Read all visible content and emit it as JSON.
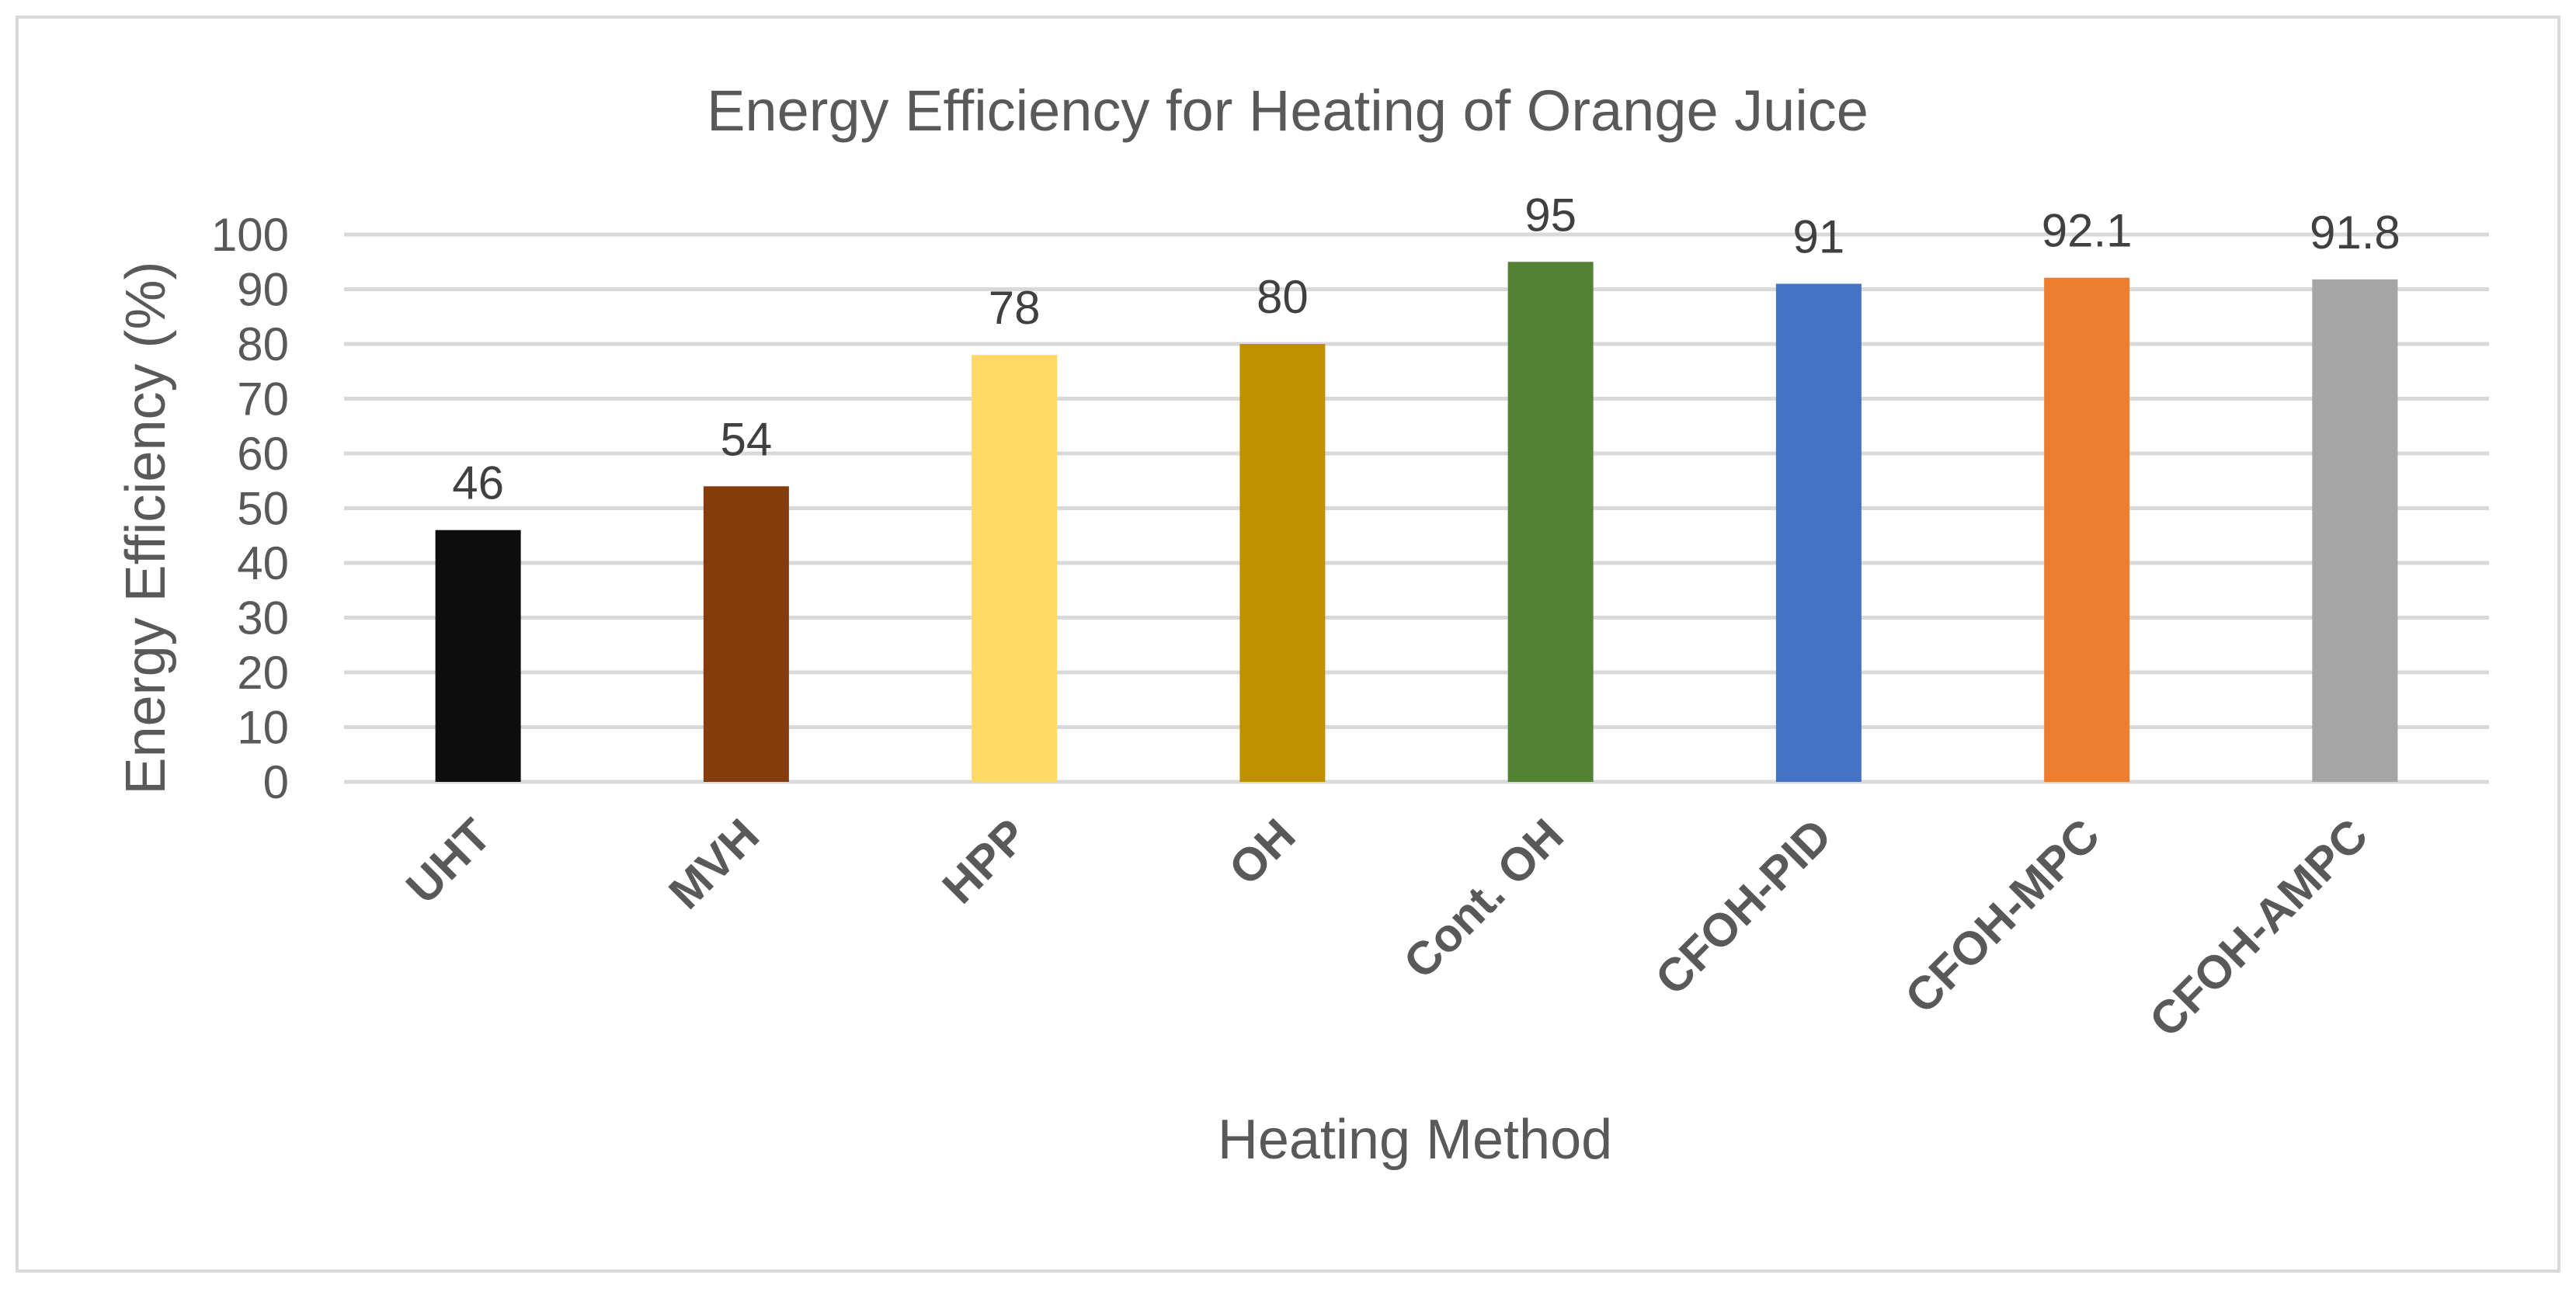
{
  "chart_data": {
    "type": "bar",
    "title": "Energy Efficiency for Heating of Orange Juice",
    "xlabel": "Heating Method",
    "ylabel": "Energy Efficiency (%)",
    "ylim": [
      0,
      100
    ],
    "yticks": [
      "0",
      "10",
      "20",
      "30",
      "40",
      "50",
      "60",
      "70",
      "80",
      "90",
      "100"
    ],
    "grid": true,
    "categories": [
      "UHT",
      "MVH",
      "HPP",
      "OH",
      "Cont. OH",
      "CFOH-PID",
      "CFOH-MPC",
      "CFOH-AMPC"
    ],
    "values": [
      46,
      54,
      78,
      80,
      95,
      91,
      92.1,
      91.8
    ],
    "data_labels": [
      "46",
      "54",
      "78",
      "80",
      "95",
      "91",
      "92.1",
      "91.8"
    ],
    "colors": [
      "#0d0d0d",
      "#843c0c",
      "#ffd966",
      "#bf9000",
      "#548235",
      "#4472c4",
      "#ed7d31",
      "#a5a5a5"
    ]
  }
}
